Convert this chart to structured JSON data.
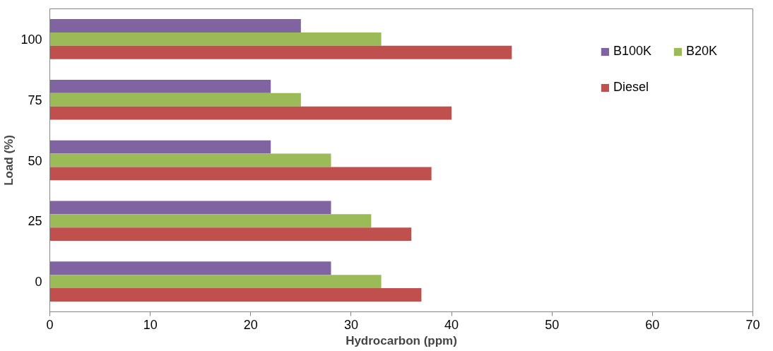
{
  "chart_data": {
    "type": "bar",
    "orientation": "horizontal",
    "xlabel": "Hydrocarbon (ppm)",
    "ylabel": "Load (%)",
    "categories": [
      "100",
      "75",
      "50",
      "25",
      "0"
    ],
    "series": [
      {
        "name": "B100K",
        "color": "#8064a2",
        "values": [
          25,
          22,
          22,
          28,
          28
        ]
      },
      {
        "name": "B20K",
        "color": "#9bbb59",
        "values": [
          33,
          25,
          28,
          32,
          33
        ]
      },
      {
        "name": "Diesel",
        "color": "#c0504d",
        "values": [
          46,
          40,
          38,
          36,
          37
        ]
      }
    ],
    "xlim": [
      0,
      70
    ],
    "xticks": [
      0,
      10,
      20,
      30,
      40,
      50,
      60,
      70
    ],
    "grid": false,
    "legend": "top right"
  }
}
